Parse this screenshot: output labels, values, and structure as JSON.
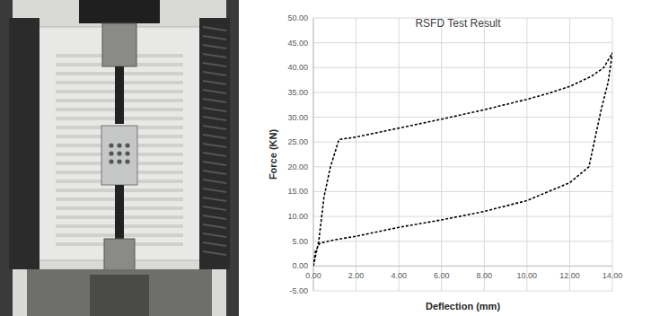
{
  "chart_data": {
    "type": "line",
    "title": "RSFD Test Result",
    "x_label": "Deflection (mm)",
    "y_label": "Force (KN)",
    "x": [
      0,
      0.25,
      0.5,
      0.8,
      1.2,
      2,
      4,
      6,
      8,
      10,
      11,
      12,
      13,
      13.6,
      14,
      13.8,
      13.5,
      13.2,
      12.9,
      12,
      11,
      10,
      8,
      6,
      4,
      2,
      1,
      0.3,
      0.1,
      0
    ],
    "series": [
      {
        "color": "#000000",
        "line_style": "dashed",
        "values": [
          0,
          5,
          14,
          20,
          25.5,
          26,
          27.8,
          29.6,
          31.5,
          33.6,
          34.8,
          36.2,
          38.2,
          40,
          43,
          37,
          32,
          26,
          20,
          16.8,
          15,
          13.2,
          11,
          9.3,
          7.8,
          6,
          5.3,
          4.6,
          3,
          0
        ]
      }
    ],
    "xlim": [
      0,
      14
    ],
    "xticks": [
      {
        "value": 0,
        "label": "0.00"
      },
      {
        "value": 2,
        "label": "2.00"
      },
      {
        "value": 4,
        "label": "4.00"
      },
      {
        "value": 6,
        "label": "6.00"
      },
      {
        "value": 8,
        "label": "8.00"
      },
      {
        "value": 10,
        "label": "10.00"
      },
      {
        "value": 12,
        "label": "12.00"
      },
      {
        "value": 14,
        "label": "14.00"
      }
    ],
    "ylim": [
      -5,
      50
    ],
    "yticks": [
      {
        "value": -5,
        "label": "-5.00"
      },
      {
        "value": 0,
        "label": "0.00"
      },
      {
        "value": 5,
        "label": "5.00"
      },
      {
        "value": 10,
        "label": "10.00"
      },
      {
        "value": 15,
        "label": "15.00"
      },
      {
        "value": 20,
        "label": "20.00"
      },
      {
        "value": 25,
        "label": "25.00"
      },
      {
        "value": 30,
        "label": "30.00"
      },
      {
        "value": 35,
        "label": "35.00"
      },
      {
        "value": 40,
        "label": "40.00"
      },
      {
        "value": 45,
        "label": "45.00"
      },
      {
        "value": 50,
        "label": "50.00"
      }
    ],
    "grid": true
  }
}
